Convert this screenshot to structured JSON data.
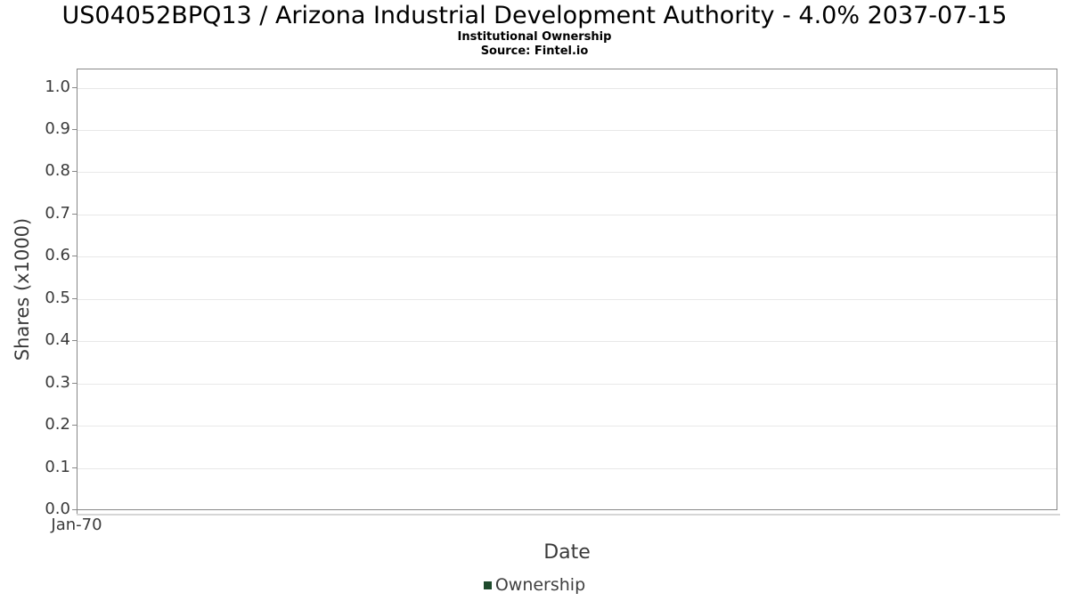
{
  "page": {
    "title": "US04052BPQ13 / Arizona Industrial Development Authority - 4.0% 2037-07-15",
    "subtitle": "Institutional Ownership",
    "source": "Source: Fintel.io"
  },
  "chart_data": {
    "type": "line",
    "title": "US04052BPQ13 / Arizona Industrial Development Authority - 4.0% 2037-07-15",
    "subtitle": "Institutional Ownership",
    "source": "Source: Fintel.io",
    "xlabel": "Date",
    "ylabel": "Shares (x1000)",
    "xticks": [
      "Jan-70"
    ],
    "yticks": [
      0.0,
      0.1,
      0.2,
      0.3,
      0.4,
      0.5,
      0.6,
      0.7,
      0.8,
      0.9,
      1.0
    ],
    "ylim": [
      0.0,
      1.045
    ],
    "grid": true,
    "legend_position": "bottom-center",
    "series": [
      {
        "name": "Ownership",
        "color": "#1e4a2c",
        "x": [],
        "y": []
      }
    ]
  },
  "colors": {
    "title_text": "#000000",
    "axis_text": "#3a3a3a",
    "plot_border": "#888888",
    "gridline": "#e8e8e8",
    "x_axis_line": "#d6d6d6",
    "legend_marker": "#1e4a2c"
  }
}
